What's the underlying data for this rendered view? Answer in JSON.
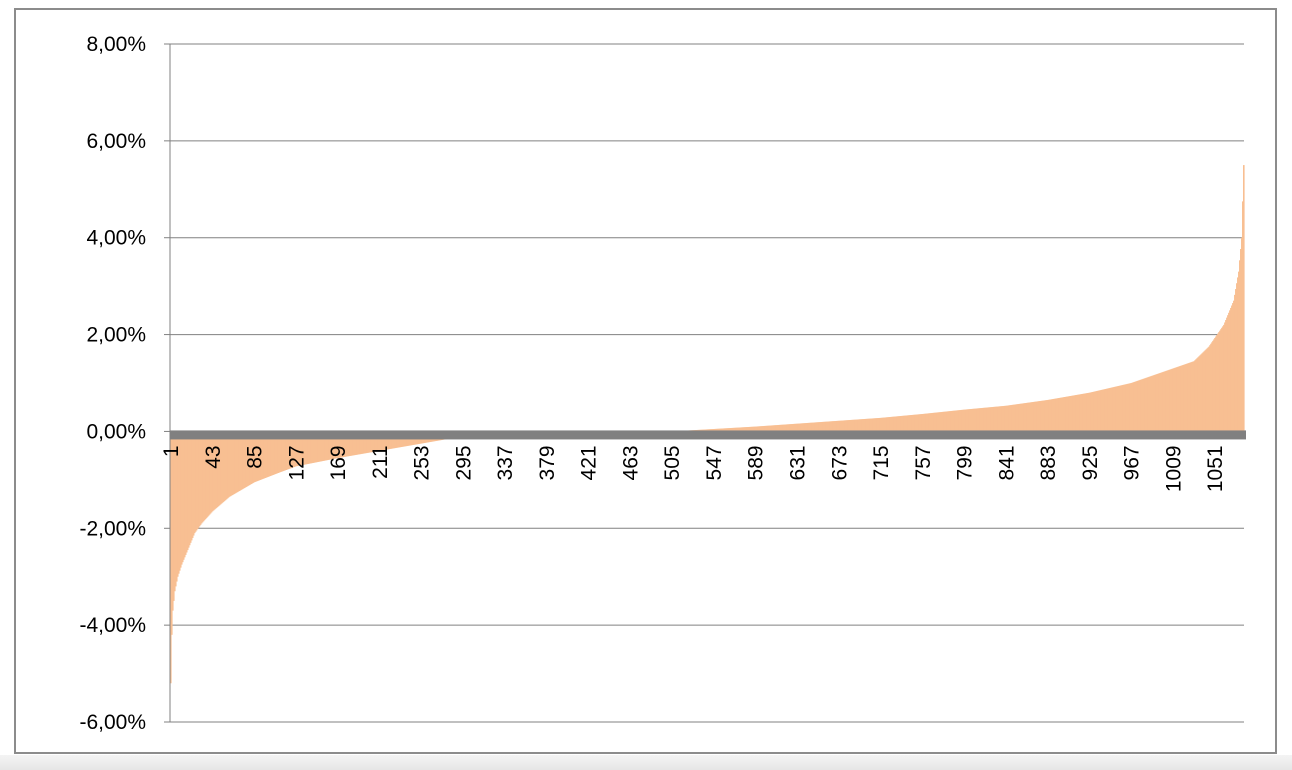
{
  "chart_data": {
    "type": "bar",
    "title": "",
    "xlabel": "",
    "ylabel": "",
    "ylim": [
      -0.06,
      0.08
    ],
    "y_ticks": [
      8,
      6,
      4,
      2,
      0,
      -2,
      -4,
      -6
    ],
    "y_tick_labels": [
      "8,00%",
      "6,00%",
      "4,00%",
      "2,00%",
      "0,00%",
      "-2,00%",
      "-4,00%",
      "-6,00%"
    ],
    "x_count": 1080,
    "x_tick_labels": [
      "1",
      "43",
      "85",
      "127",
      "169",
      "211",
      "253",
      "295",
      "337",
      "379",
      "421",
      "463",
      "505",
      "547",
      "589",
      "631",
      "673",
      "715",
      "757",
      "799",
      "841",
      "883",
      "925",
      "967",
      "1009",
      "1051"
    ],
    "grid": "horizontal",
    "legend": "none",
    "colors": {
      "bars": "#f8bf92",
      "zero_line": "#808080",
      "gridlines": "#808080",
      "axis": "#808080"
    },
    "series": [
      {
        "values_description_points": [
          [
            1,
            -5.2
          ],
          [
            2,
            -4.2
          ],
          [
            3,
            -3.7
          ],
          [
            5,
            -3.3
          ],
          [
            8,
            -3.0
          ],
          [
            12,
            -2.75
          ],
          [
            18,
            -2.45
          ],
          [
            25,
            -2.1
          ],
          [
            32,
            -1.9
          ],
          [
            43,
            -1.65
          ],
          [
            60,
            -1.35
          ],
          [
            85,
            -1.05
          ],
          [
            110,
            -0.85
          ],
          [
            127,
            -0.72
          ],
          [
            169,
            -0.55
          ],
          [
            211,
            -0.4
          ],
          [
            253,
            -0.25
          ],
          [
            295,
            -0.1
          ],
          [
            330,
            0.0
          ],
          [
            505,
            0.0
          ],
          [
            547,
            0.05
          ],
          [
            589,
            0.1
          ],
          [
            631,
            0.16
          ],
          [
            673,
            0.22
          ],
          [
            715,
            0.28
          ],
          [
            757,
            0.36
          ],
          [
            799,
            0.45
          ],
          [
            841,
            0.53
          ],
          [
            883,
            0.65
          ],
          [
            925,
            0.8
          ],
          [
            967,
            1.0
          ],
          [
            1009,
            1.3
          ],
          [
            1030,
            1.45
          ],
          [
            1045,
            1.75
          ],
          [
            1060,
            2.2
          ],
          [
            1070,
            2.7
          ],
          [
            1075,
            3.3
          ],
          [
            1078,
            4.0
          ],
          [
            1080,
            5.5
          ]
        ]
      }
    ]
  }
}
